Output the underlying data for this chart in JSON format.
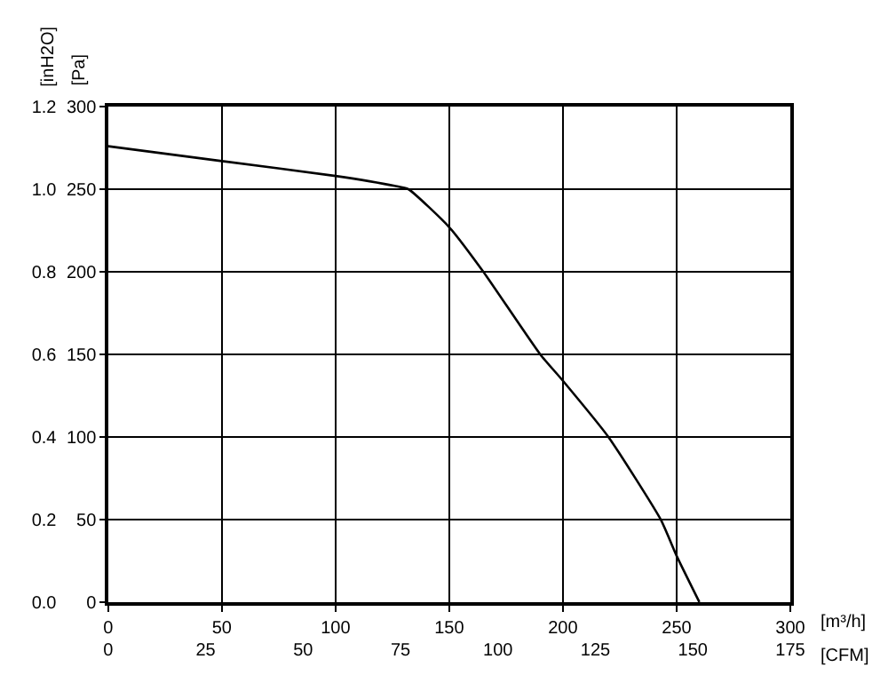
{
  "chart_data": {
    "type": "line",
    "xlabel": "[m³/h]",
    "x2label": "[CFM]",
    "ylabel": "[Pa]",
    "y2label": "[inH2O]",
    "series": [
      {
        "color": "#000000",
        "x": [
          0,
          50,
          100,
          126,
          132,
          150,
          165,
          190,
          200,
          220,
          243,
          250,
          260
        ],
        "values": [
          276,
          267,
          258,
          252,
          250,
          227,
          200,
          150,
          134,
          100,
          50,
          28,
          0
        ]
      }
    ],
    "xlim": [
      0,
      300
    ],
    "xticks": [
      0,
      50,
      100,
      150,
      200,
      250,
      300
    ],
    "x2lim": [
      0,
      175
    ],
    "x2ticks": [
      0,
      25,
      50,
      75,
      100,
      125,
      150,
      175
    ],
    "ylim": [
      0,
      300
    ],
    "yticks": [
      0,
      50,
      100,
      150,
      200,
      250,
      300
    ],
    "y2lim": [
      0,
      1.2
    ],
    "y2ticks": [
      {
        "value": 0,
        "label": "0.0"
      },
      {
        "value": 0.2,
        "label": "0.2"
      },
      {
        "value": 0.4,
        "label": "0.4"
      },
      {
        "value": 0.6,
        "label": "0.6"
      },
      {
        "value": 0.8,
        "label": "0.8"
      },
      {
        "value": 1.0,
        "label": "1.0"
      },
      {
        "value": 1.2,
        "label": "1.2"
      }
    ],
    "grid": true,
    "marker": "none",
    "line_style": "solid"
  }
}
